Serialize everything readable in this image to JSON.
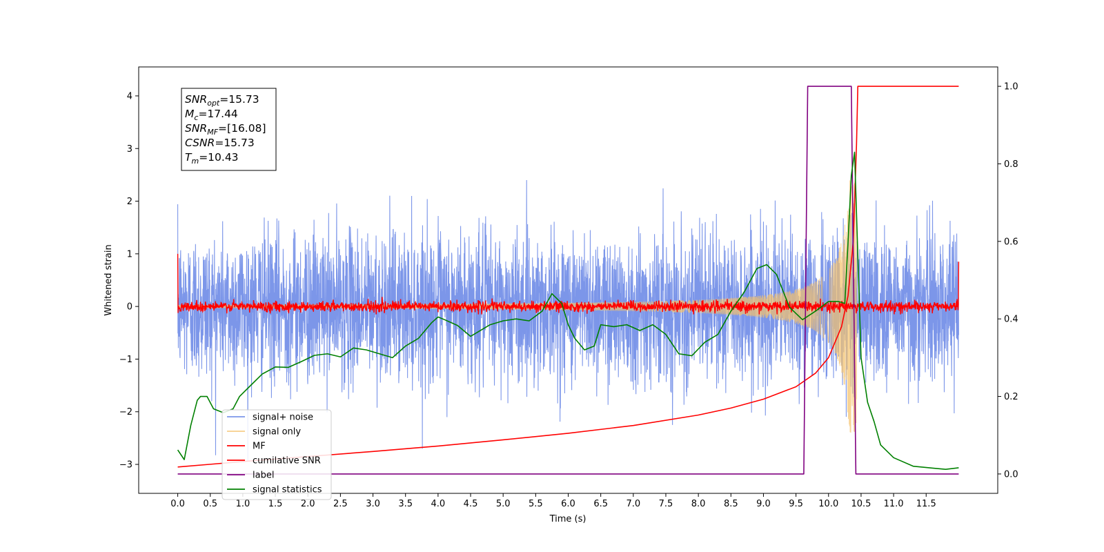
{
  "chart_data": {
    "type": "line",
    "xlabel": "Time (s)",
    "ylabel": "Whitened strain",
    "xlim": [
      -0.6,
      12.6
    ],
    "ylim": [
      -3.55,
      4.55
    ],
    "y2lim": [
      -0.05,
      1.05
    ],
    "x_ticks": [
      0.0,
      0.5,
      1.0,
      1.5,
      2.0,
      2.5,
      3.0,
      3.5,
      4.0,
      4.5,
      5.0,
      5.5,
      6.0,
      6.5,
      7.0,
      7.5,
      8.0,
      8.5,
      9.0,
      9.5,
      10.0,
      10.5,
      11.0,
      11.5
    ],
    "x_tick_labels": [
      "0.0",
      "0.5",
      "1.0",
      "1.5",
      "2.0",
      "2.5",
      "3.0",
      "3.5",
      "4.0",
      "4.5",
      "5.0",
      "5.5",
      "6.0",
      "6.5",
      "7.0",
      "7.5",
      "8.0",
      "8.5",
      "9.0",
      "9.5",
      "10.0",
      "10.5",
      "11.0",
      "11.5"
    ],
    "y_ticks": [
      -3,
      -2,
      -1,
      0,
      1,
      2,
      3,
      4
    ],
    "y_tick_labels": [
      "−3",
      "−2",
      "−1",
      "0",
      "1",
      "2",
      "3",
      "4"
    ],
    "y2_ticks": [
      0.0,
      0.2,
      0.4,
      0.6,
      0.8,
      1.0
    ],
    "y2_tick_labels": [
      "0.0",
      "0.2",
      "0.4",
      "0.6",
      "0.8",
      "1.0"
    ],
    "grid": false,
    "legend_position": "lower-left",
    "annotation": {
      "lines": [
        {
          "sym": "SNR",
          "sub": "opt",
          "value": "=15.73"
        },
        {
          "sym": "M",
          "sub": "c",
          "value": "=17.44"
        },
        {
          "sym": "SNR",
          "sub": "MF",
          "value": "=[16.08]"
        },
        {
          "sym": "CSNR",
          "sub": "",
          "value": "=15.73"
        },
        {
          "sym": "T",
          "sub": "m",
          "value": "=10.43"
        }
      ]
    },
    "series": [
      {
        "name": "signal+ noise",
        "axis": "left",
        "color": "#7590e8",
        "kind": "noise",
        "x_range": [
          0.0,
          12.0
        ],
        "mean": 0.0,
        "std": 0.7,
        "min": -3.25,
        "max": 2.6,
        "samples": 4000
      },
      {
        "name": "signal only",
        "axis": "left",
        "color": "#f5c26b",
        "kind": "chirp",
        "x_range": [
          0.0,
          10.43
        ],
        "amplitude_start": 0.03,
        "amplitude_peak": 2.4,
        "merger_time": 10.43
      },
      {
        "name": "MF",
        "axis": "left",
        "color": "#ff0000",
        "kind": "noise",
        "x_range": [
          0.0,
          12.0
        ],
        "start_value": 1.0,
        "end_value": 0.85,
        "mean": 0.0,
        "std": 0.05,
        "min": -0.15,
        "max": 0.25
      },
      {
        "name": "cumilative SNR",
        "axis": "right",
        "color": "#ff0000",
        "x": [
          0.0,
          0.5,
          1.0,
          2.0,
          3.0,
          4.0,
          5.0,
          6.0,
          7.0,
          8.0,
          8.5,
          9.0,
          9.5,
          9.8,
          10.0,
          10.2,
          10.3,
          10.38,
          10.43,
          10.45,
          12.0
        ],
        "values": [
          0.018,
          0.025,
          0.032,
          0.045,
          0.058,
          0.072,
          0.088,
          0.105,
          0.125,
          0.152,
          0.17,
          0.193,
          0.225,
          0.26,
          0.3,
          0.38,
          0.46,
          0.6,
          0.85,
          1.0,
          1.0
        ]
      },
      {
        "name": "label",
        "axis": "right",
        "color": "#800080",
        "x": [
          0.0,
          9.62,
          9.68,
          10.35,
          10.42,
          12.0
        ],
        "values": [
          0.0,
          0.0,
          1.0,
          1.0,
          0.0,
          0.0
        ]
      },
      {
        "name": "signal statistics",
        "axis": "right",
        "color": "#008000",
        "x": [
          0.0,
          0.1,
          0.2,
          0.3,
          0.35,
          0.45,
          0.55,
          0.7,
          0.85,
          0.95,
          1.1,
          1.3,
          1.5,
          1.7,
          1.9,
          2.1,
          2.3,
          2.5,
          2.7,
          2.9,
          3.1,
          3.3,
          3.5,
          3.7,
          3.9,
          4.0,
          4.1,
          4.3,
          4.5,
          4.6,
          4.8,
          5.0,
          5.2,
          5.4,
          5.6,
          5.75,
          5.9,
          6.0,
          6.1,
          6.25,
          6.4,
          6.5,
          6.7,
          6.9,
          7.1,
          7.3,
          7.5,
          7.7,
          7.9,
          8.1,
          8.3,
          8.5,
          8.7,
          8.9,
          9.05,
          9.2,
          9.4,
          9.6,
          9.8,
          10.0,
          10.15,
          10.25,
          10.3,
          10.35,
          10.4,
          10.5,
          10.6,
          10.7,
          10.8,
          11.0,
          11.3,
          11.6,
          11.8,
          12.0
        ],
        "values": [
          0.062,
          0.037,
          0.125,
          0.19,
          0.2,
          0.2,
          0.168,
          0.158,
          0.168,
          0.2,
          0.225,
          0.258,
          0.276,
          0.275,
          0.29,
          0.306,
          0.31,
          0.302,
          0.325,
          0.32,
          0.31,
          0.3,
          0.33,
          0.35,
          0.39,
          0.405,
          0.398,
          0.383,
          0.355,
          0.365,
          0.385,
          0.395,
          0.4,
          0.395,
          0.42,
          0.465,
          0.44,
          0.385,
          0.35,
          0.32,
          0.33,
          0.385,
          0.38,
          0.385,
          0.37,
          0.385,
          0.36,
          0.31,
          0.305,
          0.34,
          0.36,
          0.42,
          0.468,
          0.53,
          0.54,
          0.515,
          0.43,
          0.398,
          0.42,
          0.445,
          0.445,
          0.44,
          0.6,
          0.77,
          0.83,
          0.3,
          0.185,
          0.135,
          0.075,
          0.042,
          0.02,
          0.015,
          0.012,
          0.016
        ]
      }
    ]
  }
}
